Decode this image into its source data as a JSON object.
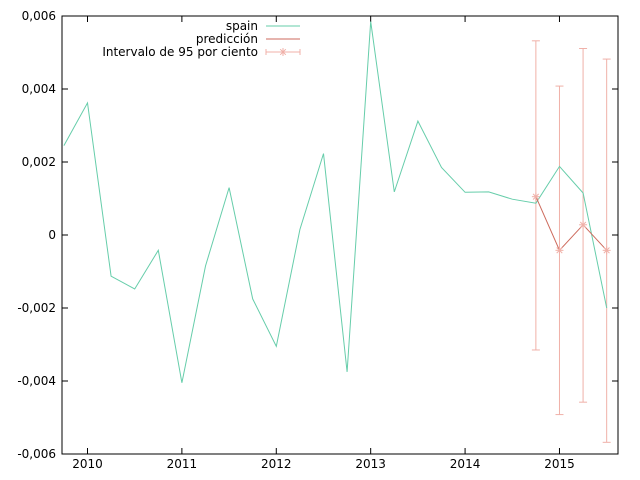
{
  "chart_data": {
    "type": "line",
    "ylim": [
      -0.006,
      0.006
    ],
    "xlim": [
      2009.73,
      2015.62
    ],
    "y_ticks": [
      -0.006,
      -0.004,
      -0.002,
      0,
      0.002,
      0.004,
      0.006
    ],
    "y_tick_labels": [
      "-0,006",
      "-0,004",
      "-0,002",
      "0",
      "0,002",
      "0,004",
      "0,006"
    ],
    "x_ticks": [
      2010,
      2011,
      2012,
      2013,
      2014,
      2015
    ],
    "x_tick_labels": [
      "2010",
      "2011",
      "2012",
      "2013",
      "2014",
      "2015"
    ],
    "grid": false,
    "legend_position": "top-center",
    "series": [
      {
        "name": "spain",
        "color": "#66cdaa",
        "x": [
          2009.75,
          2010.0,
          2010.25,
          2010.5,
          2010.75,
          2011.0,
          2011.25,
          2011.5,
          2011.75,
          2012.0,
          2012.25,
          2012.5,
          2012.75,
          2013.0,
          2013.25,
          2013.5,
          2013.75,
          2014.0,
          2014.25,
          2014.5,
          2014.75,
          2015.0,
          2015.25,
          2015.5
        ],
        "y": [
          0.00245,
          0.00362,
          -0.00113,
          -0.00148,
          -0.00042,
          -0.00405,
          -0.00085,
          0.0013,
          -0.00175,
          -0.00305,
          0.00015,
          0.00223,
          -0.00375,
          0.00585,
          0.00118,
          0.00312,
          0.00185,
          0.00117,
          0.00118,
          0.00098,
          0.00087,
          0.00188,
          0.00115,
          -0.002
        ]
      },
      {
        "name": "predicción",
        "color": "#cd6a5c",
        "x": [
          2014.75,
          2015.0,
          2015.25,
          2015.5
        ],
        "y": [
          0.00105,
          -0.00042,
          0.00028,
          -0.00042
        ]
      }
    ],
    "interval": {
      "name": "Intervalo de 95 por ciento",
      "color": "#f0b0a8",
      "x": [
        2014.75,
        2015.0,
        2015.25,
        2015.5
      ],
      "center": [
        0.00105,
        -0.00042,
        0.00028,
        -0.00042
      ],
      "low": [
        -0.00315,
        -0.00492,
        -0.00458,
        -0.00568
      ],
      "high": [
        0.00532,
        0.00408,
        0.00511,
        0.00482
      ]
    }
  }
}
